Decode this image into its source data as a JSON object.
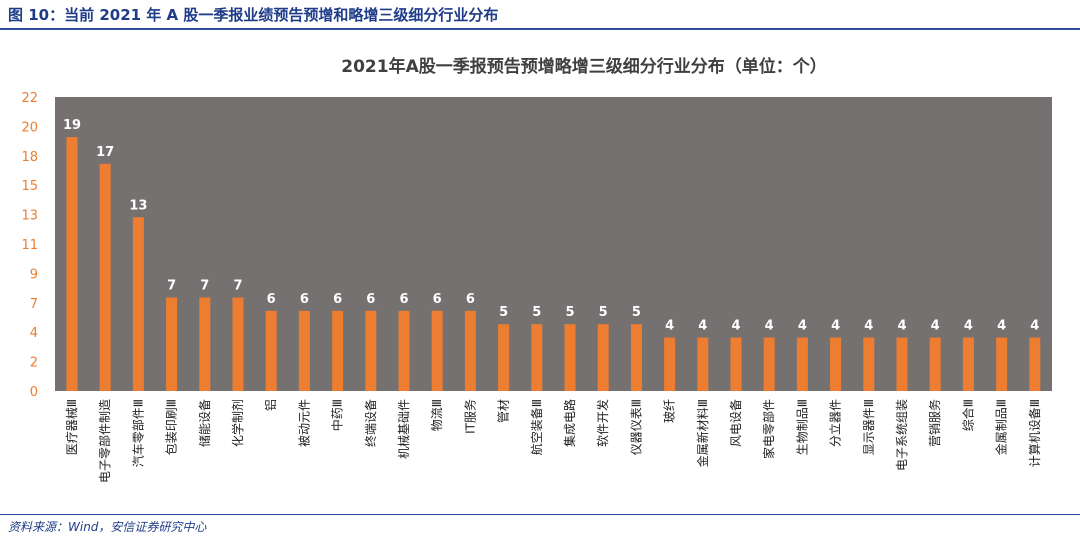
{
  "figure_title": "图 10：当前 2021 年 A 股一季报业绩预告预增和略增三级细分行业分布",
  "source": "资料来源：Wind，安信证券研究中心",
  "colors": {
    "bar": "#ED7D31",
    "plot_bg": "#767171",
    "axis_tick": "#ED7D31",
    "frame": "#2f4f9e"
  },
  "chart_data": {
    "type": "bar",
    "title": "2021年A股一季报预告预增略增三级细分行业分布（单位：个）",
    "categories": [
      "医疗器械Ⅲ",
      "电子零部件制造",
      "汽车零部件Ⅲ",
      "包装印刷Ⅲ",
      "储能设备",
      "化学制剂",
      "铝",
      "被动元件",
      "中药Ⅲ",
      "终端设备",
      "机械基础件",
      "物流Ⅲ",
      "IT服务",
      "管材",
      "航空装备Ⅲ",
      "集成电路",
      "软件开发",
      "仪器仪表Ⅲ",
      "玻纤",
      "金属新材料Ⅲ",
      "风电设备",
      "家电零部件",
      "生物制品Ⅲ",
      "分立器件",
      "显示器件Ⅲ",
      "电子系统组装",
      "营销服务",
      "综合Ⅲ",
      "金属制品Ⅲ",
      "计算机设备Ⅲ"
    ],
    "values": [
      19,
      17,
      13,
      7,
      7,
      7,
      6,
      6,
      6,
      6,
      6,
      6,
      6,
      5,
      5,
      5,
      5,
      5,
      4,
      4,
      4,
      4,
      4,
      4,
      4,
      4,
      4,
      4,
      4,
      4
    ],
    "y_ticks": [
      "0",
      "2",
      "4",
      "7",
      "9",
      "11",
      "13",
      "15",
      "18",
      "20",
      "22"
    ],
    "ylim": [
      0,
      22
    ],
    "xlabel": "",
    "ylabel": "",
    "grid": false
  }
}
